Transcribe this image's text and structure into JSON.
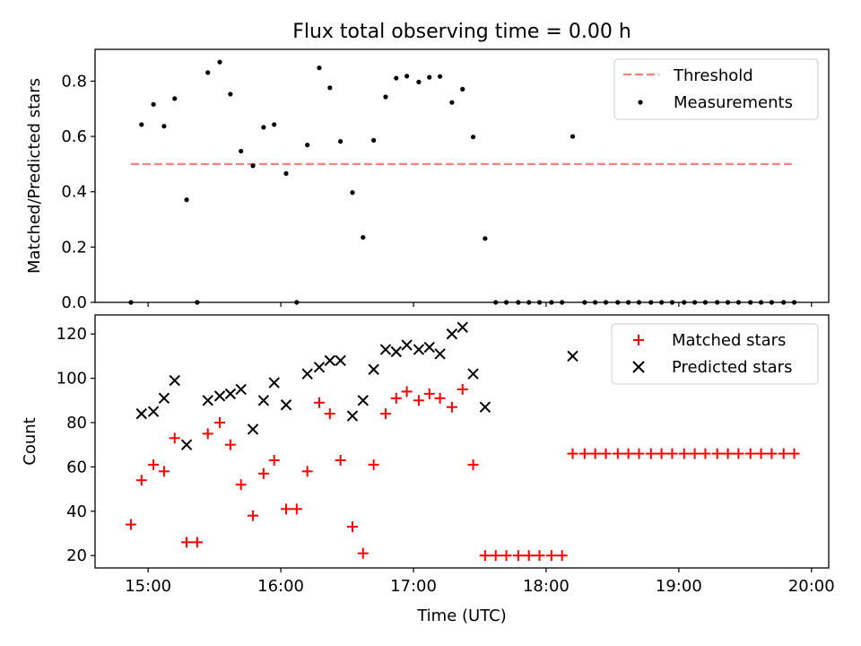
{
  "chart_data": [
    {
      "type": "scatter",
      "title": "Flux total observing time = 0.00 h",
      "xlabel": "",
      "ylabel": "Matched/Predicted stars",
      "xlim": [
        14.6,
        20.13
      ],
      "ylim": [
        0.0,
        0.915
      ],
      "xticks": [
        15,
        16,
        17,
        18,
        19,
        20
      ],
      "xtick_labels": [
        "",
        "",
        "",
        "",
        "",
        ""
      ],
      "yticks": [
        0.0,
        0.2,
        0.4,
        0.6,
        0.8
      ],
      "ytick_labels": [
        "0.0",
        "0.2",
        "0.4",
        "0.6",
        "0.8"
      ],
      "grid": false,
      "legend_position": "top-right",
      "threshold": {
        "name": "Threshold",
        "color": "#ff7f7f",
        "style": "dashed",
        "x": [
          14.87,
          19.87
        ],
        "y": 0.5
      },
      "series": [
        {
          "name": "Measurements",
          "color": "#000000",
          "marker": "dot",
          "x": [
            14.87,
            14.95,
            15.04,
            15.12,
            15.2,
            15.29,
            15.37,
            15.45,
            15.54,
            15.62,
            15.7,
            15.79,
            15.87,
            15.95,
            16.04,
            16.12,
            16.2,
            16.29,
            16.37,
            16.45,
            16.54,
            16.62,
            16.7,
            16.79,
            16.87,
            16.95,
            17.04,
            17.12,
            17.2,
            17.29,
            17.37,
            17.45,
            17.54,
            17.62,
            17.7,
            17.79,
            17.87,
            17.95,
            18.04,
            18.12,
            18.2,
            18.29,
            18.37,
            18.45,
            18.54,
            18.62,
            18.7,
            18.79,
            18.87,
            18.95,
            19.04,
            19.12,
            19.2,
            19.29,
            19.37,
            19.45,
            19.54,
            19.62,
            19.7,
            19.79,
            19.87
          ],
          "y": [
            0.0,
            0.643,
            0.716,
            0.637,
            0.737,
            0.371,
            0.0,
            0.831,
            0.869,
            0.753,
            0.547,
            0.494,
            0.633,
            0.643,
            0.466,
            0.0,
            0.569,
            0.848,
            0.776,
            0.582,
            0.397,
            0.235,
            0.586,
            0.743,
            0.811,
            0.818,
            0.797,
            0.814,
            0.817,
            0.723,
            0.771,
            0.598,
            0.231,
            0.0,
            0.0,
            0.0,
            0.0,
            0.0,
            0.0,
            0.0,
            0.6,
            0.0,
            0.0,
            0.0,
            0.0,
            0.0,
            0.0,
            0.0,
            0.0,
            0.0,
            0.0,
            0.0,
            0.0,
            0.0,
            0.0,
            0.0,
            0.0,
            0.0,
            0.0,
            0.0,
            0.0
          ]
        }
      ]
    },
    {
      "type": "scatter",
      "title": "",
      "xlabel": "Time (UTC)",
      "ylabel": "Count",
      "xlim": [
        14.6,
        20.13
      ],
      "ylim": [
        14.4,
        128.6
      ],
      "xticks": [
        15,
        16,
        17,
        18,
        19,
        20
      ],
      "xtick_labels": [
        "15:00",
        "16:00",
        "17:00",
        "18:00",
        "19:00",
        "20:00"
      ],
      "yticks": [
        20,
        40,
        60,
        80,
        100,
        120
      ],
      "ytick_labels": [
        "20",
        "40",
        "60",
        "80",
        "100",
        "120"
      ],
      "grid": false,
      "legend_position": "top-right",
      "series": [
        {
          "name": "Matched stars",
          "color": "#ff0000",
          "marker": "plus",
          "x": [
            14.87,
            14.95,
            15.04,
            15.12,
            15.2,
            15.29,
            15.37,
            15.45,
            15.54,
            15.62,
            15.7,
            15.79,
            15.87,
            15.95,
            16.04,
            16.12,
            16.2,
            16.29,
            16.37,
            16.45,
            16.54,
            16.62,
            16.7,
            16.79,
            16.87,
            16.95,
            17.04,
            17.12,
            17.2,
            17.29,
            17.37,
            17.45,
            17.54,
            17.62,
            17.7,
            17.79,
            17.87,
            17.95,
            18.04,
            18.12,
            18.2,
            18.29,
            18.37,
            18.45,
            18.54,
            18.62,
            18.7,
            18.79,
            18.87,
            18.95,
            19.04,
            19.12,
            19.2,
            19.29,
            19.37,
            19.45,
            19.54,
            19.62,
            19.7,
            19.79,
            19.87
          ],
          "y": [
            34,
            54,
            61,
            58,
            73,
            26,
            26,
            75,
            80,
            70,
            52,
            38,
            57,
            63,
            41,
            41,
            58,
            89,
            84,
            63,
            33,
            21,
            61,
            84,
            91,
            94,
            90,
            93,
            91,
            87,
            95,
            61,
            20,
            20,
            20,
            20,
            20,
            20,
            20,
            20,
            66,
            66,
            66,
            66,
            66,
            66,
            66,
            66,
            66,
            66,
            66,
            66,
            66,
            66,
            66,
            66,
            66,
            66,
            66,
            66,
            66
          ]
        },
        {
          "name": "Predicted stars",
          "color": "#000000",
          "marker": "x",
          "x": [
            14.95,
            15.04,
            15.12,
            15.2,
            15.29,
            15.45,
            15.54,
            15.62,
            15.7,
            15.79,
            15.87,
            15.95,
            16.04,
            16.2,
            16.29,
            16.37,
            16.45,
            16.54,
            16.62,
            16.7,
            16.79,
            16.87,
            16.95,
            17.04,
            17.12,
            17.2,
            17.29,
            17.37,
            17.45,
            17.54,
            18.2
          ],
          "y": [
            84,
            85,
            91,
            99,
            70,
            90,
            92,
            93,
            95,
            77,
            90,
            98,
            88,
            102,
            105,
            108,
            108,
            83,
            90,
            104,
            113,
            112,
            115,
            113,
            114,
            111,
            120,
            123,
            102,
            87,
            110
          ]
        }
      ]
    }
  ]
}
